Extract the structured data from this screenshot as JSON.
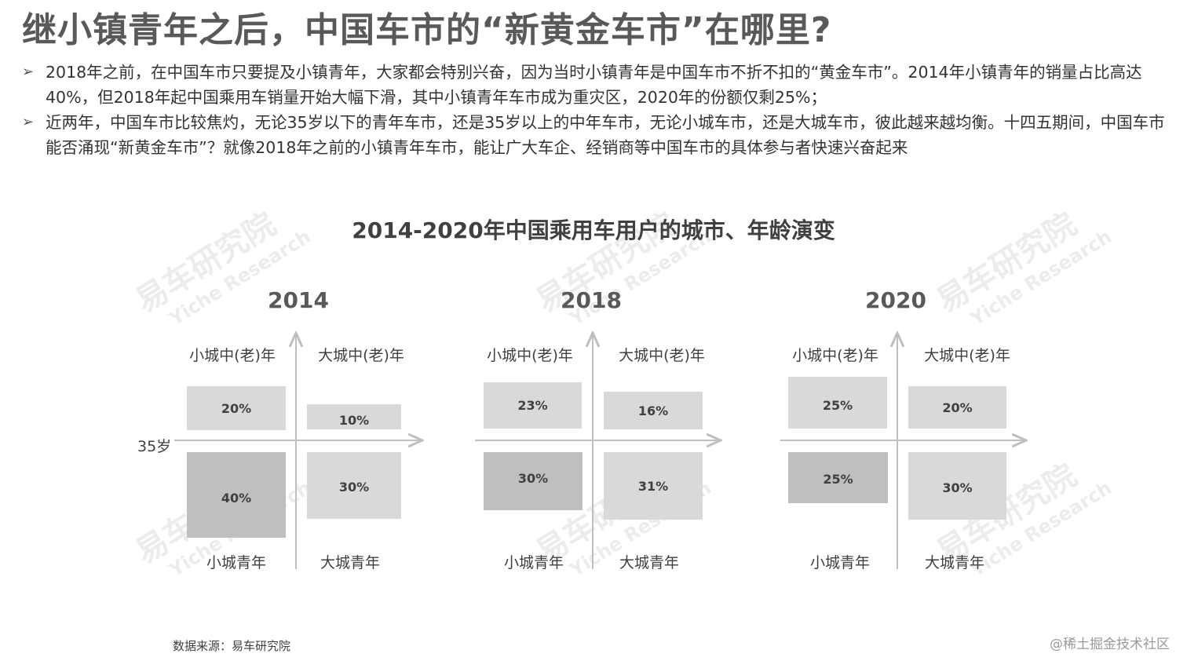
{
  "title": "继小镇青年之后，中国车市的“新黄金车市”在哪里?",
  "bullets": [
    "2018年之前，在中国车市只要提及小镇青年，大家都会特别兴奋，因为当时小镇青年是中国车市不折不扣的“黄金车市”。2014年小镇青年的销量占比高达40%，但2018年起中国乘用车销量开始大幅下滑，其中小镇青年车市成为重灾区，2020年的份额仅剩25%；",
    "近两年，中国车市比较焦灼，无论35岁以下的青年车市，还是35岁以上的中年车市，无论小城车市，还是大城车市，彼此越来越均衡。十四五期间，中国车市能否涌现“新黄金车市”？就像2018年之前的小镇青年车市，能让广大车企、经销商等中国车市的具体参与者快速兴奋起来"
  ],
  "watermark": {
    "cn": "易车研究院",
    "en": "Yiche Research"
  },
  "chart_data": {
    "type": "quadrant",
    "title": "2014-2020年中国乘用车用户的城市、年龄演变",
    "axis_label": "35岁",
    "quadrant_labels": {
      "top_left": "小城中(老)年",
      "top_right": "大城中(老)年",
      "bottom_left": "小城青年",
      "bottom_right": "大城青年"
    },
    "panels": [
      {
        "year": "2014",
        "small_mid": "20%",
        "big_mid": "10%",
        "small_young": "40%",
        "big_young": "30%"
      },
      {
        "year": "2018",
        "small_mid": "23%",
        "big_mid": "16%",
        "small_young": "30%",
        "big_young": "31%"
      },
      {
        "year": "2020",
        "small_mid": "25%",
        "big_mid": "20%",
        "small_young": "25%",
        "big_young": "30%"
      }
    ]
  },
  "source": "数据来源：易车研究院",
  "credit": "@稀土掘金技术社区"
}
